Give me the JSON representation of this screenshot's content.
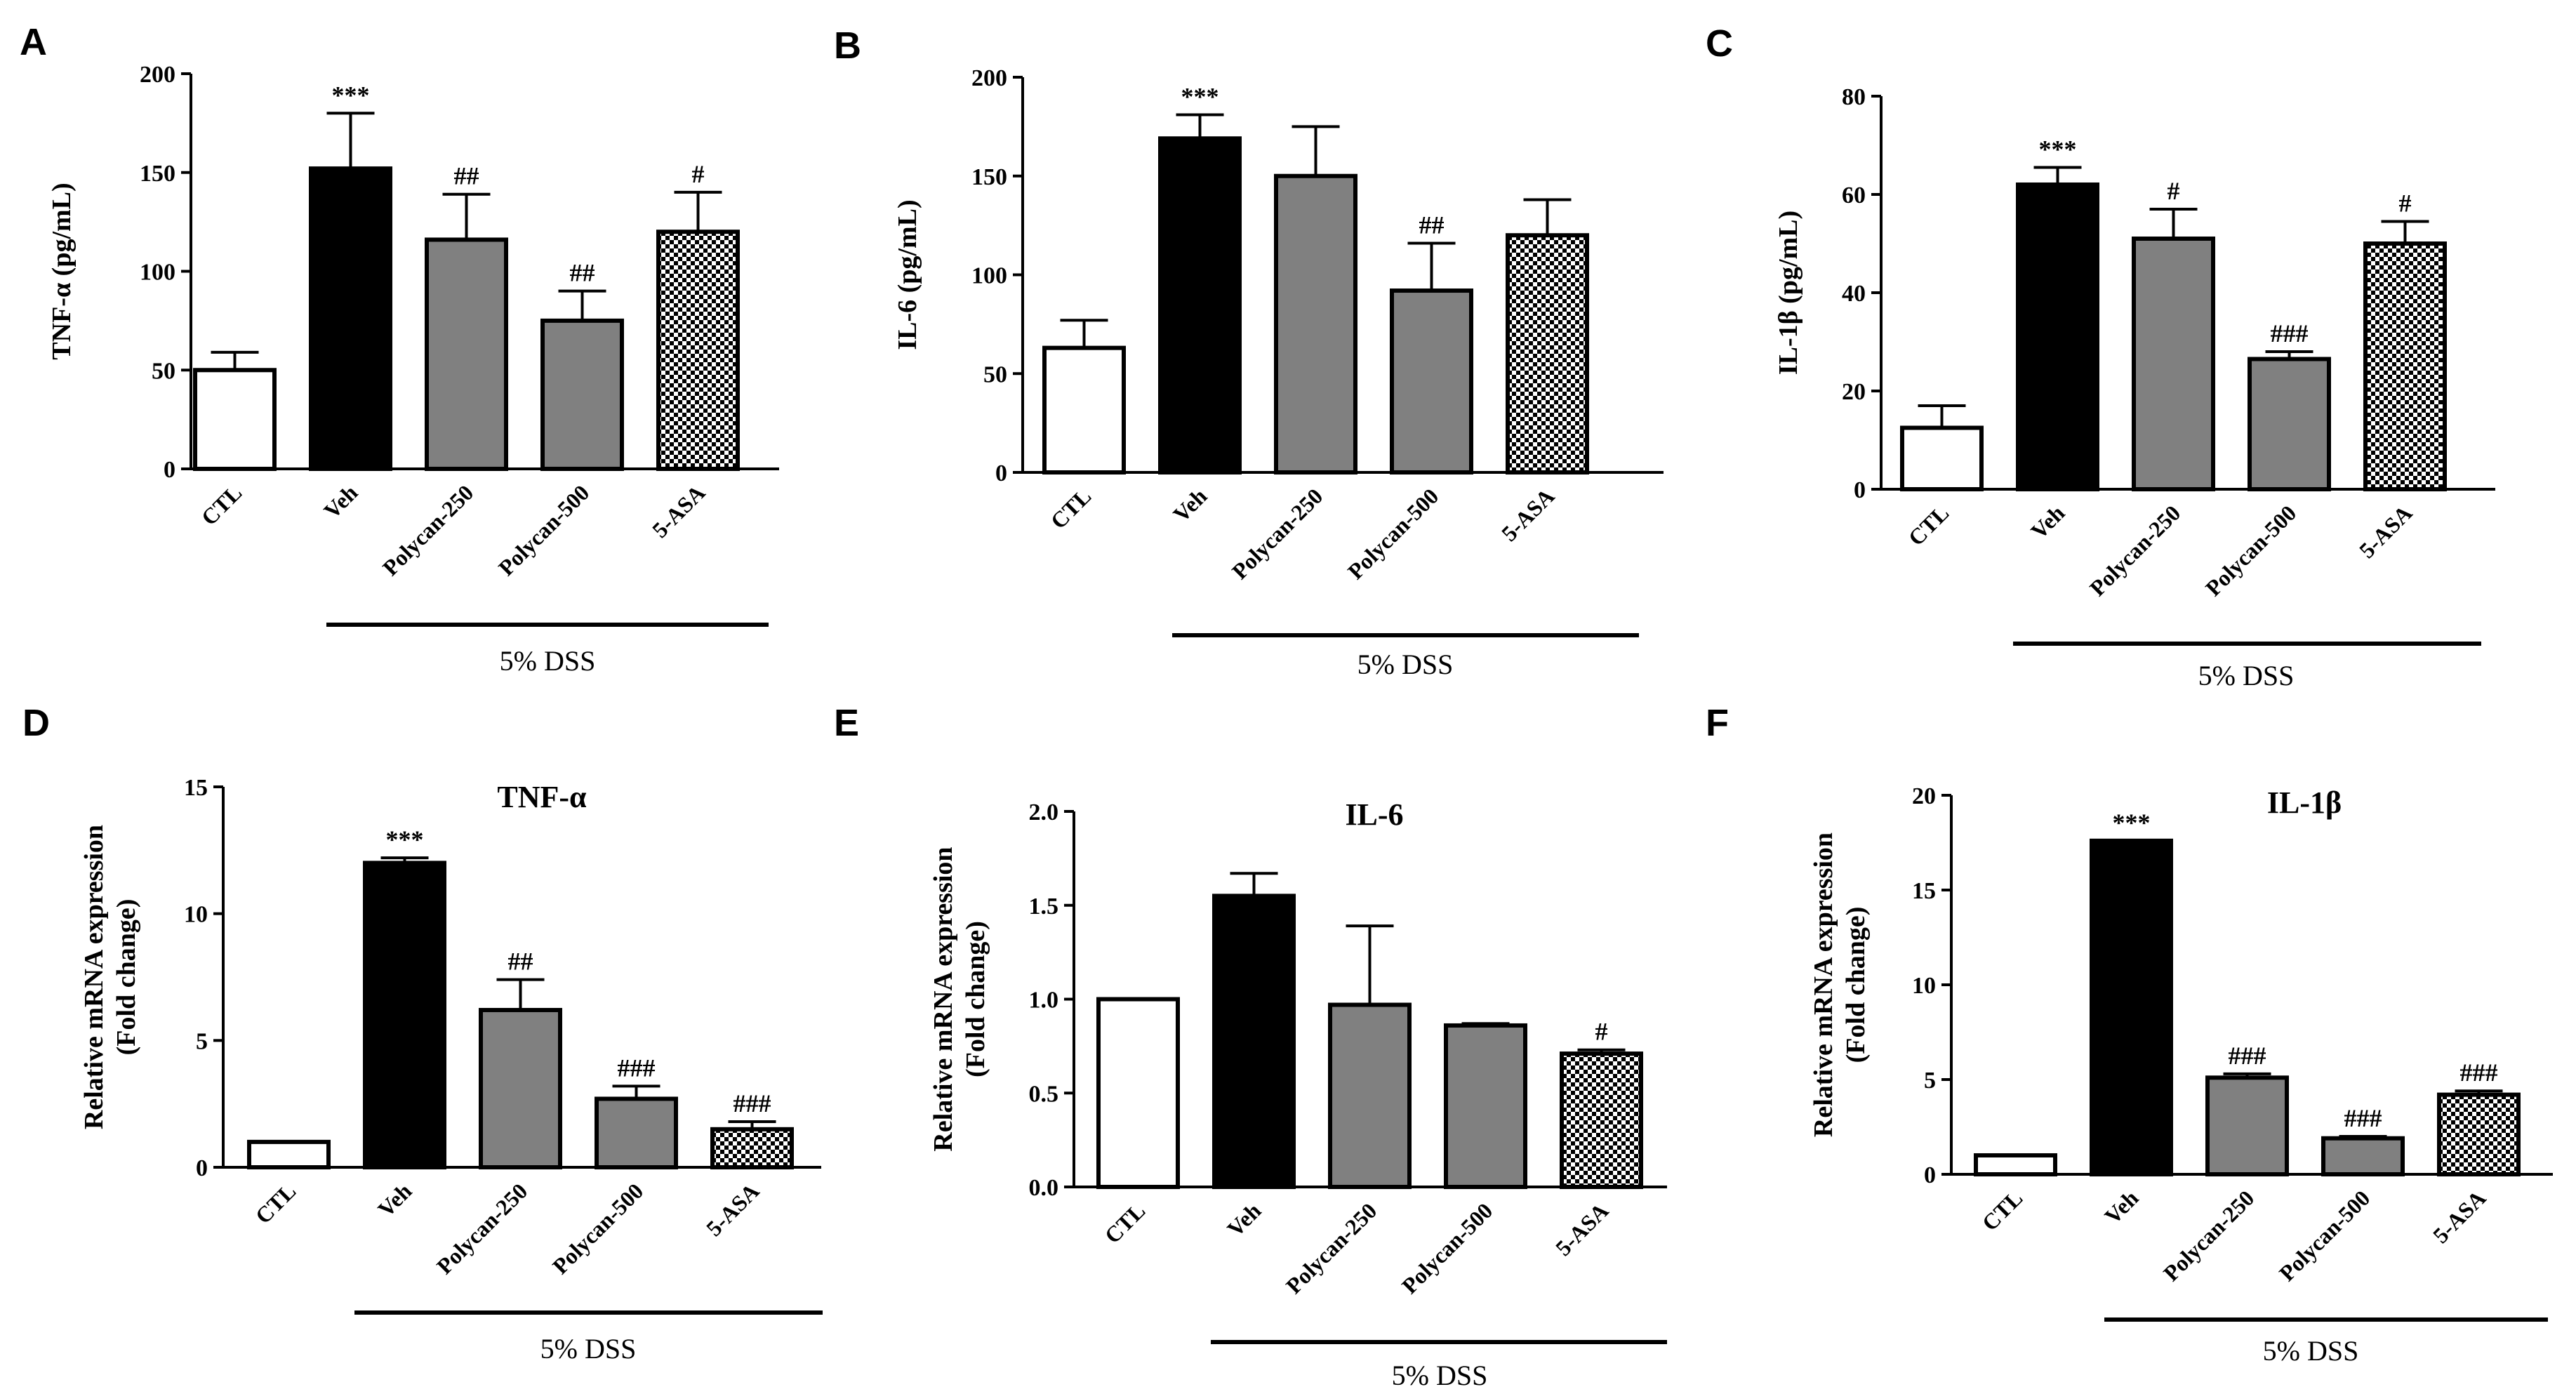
{
  "figure": {
    "group_label": "5% DSS",
    "colors": {
      "CTL": "#ffffff",
      "Veh": "#000000",
      "Polycan-250": "#808080",
      "Polycan-500": "#808080",
      "5-ASA": "checker",
      "outline": "#000000"
    }
  },
  "chart_data": [
    {
      "panel": "A",
      "type": "bar",
      "title": "",
      "ylabel": "TNF-α (pg/mL)",
      "xlabel": "",
      "categories": [
        "CTL",
        "Veh",
        "Polycan-250",
        "Polycan-500",
        "5-ASA"
      ],
      "values": [
        50,
        152,
        116,
        75,
        120
      ],
      "errors": [
        9,
        28,
        23,
        15,
        20
      ],
      "annotations": [
        "",
        "***",
        "##",
        "##",
        "#"
      ],
      "ylim": [
        0,
        200
      ],
      "yticks": [
        0,
        50,
        100,
        150,
        200
      ],
      "tick_decimals": 0
    },
    {
      "panel": "B",
      "type": "bar",
      "title": "",
      "ylabel": "IL-6 (pg/mL)",
      "xlabel": "",
      "categories": [
        "CTL",
        "Veh",
        "Polycan-250",
        "Polycan-500",
        "5-ASA"
      ],
      "values": [
        63,
        169,
        150,
        92,
        120
      ],
      "errors": [
        14,
        12,
        25,
        24,
        18
      ],
      "annotations": [
        "",
        "***",
        "",
        "##",
        ""
      ],
      "ylim": [
        0,
        200
      ],
      "yticks": [
        0,
        50,
        100,
        150,
        200
      ],
      "tick_decimals": 0
    },
    {
      "panel": "C",
      "type": "bar",
      "title": "",
      "ylabel": "IL-1β (pg/mL)",
      "xlabel": "",
      "categories": [
        "CTL",
        "Veh",
        "Polycan-250",
        "Polycan-500",
        "5-ASA"
      ],
      "values": [
        12.5,
        62,
        51,
        26.5,
        50
      ],
      "errors": [
        4.5,
        3.5,
        6,
        1.5,
        4.5
      ],
      "annotations": [
        "",
        "***",
        "#",
        "###",
        "#"
      ],
      "ylim": [
        0,
        80
      ],
      "yticks": [
        0,
        20,
        40,
        60,
        80
      ],
      "tick_decimals": 0
    },
    {
      "panel": "D",
      "type": "bar",
      "title": "TNF-α",
      "ylabel": "Relative mRNA expression\n(Fold change)",
      "xlabel": "",
      "categories": [
        "CTL",
        "Veh",
        "Polycan-250",
        "Polycan-500",
        "5-ASA"
      ],
      "values": [
        1.0,
        12.0,
        6.2,
        2.7,
        1.5
      ],
      "errors": [
        0,
        0.2,
        1.2,
        0.5,
        0.3
      ],
      "annotations": [
        "",
        "***",
        "##",
        "###",
        "###"
      ],
      "ylim": [
        0,
        15
      ],
      "yticks": [
        0,
        5,
        10,
        15
      ],
      "tick_decimals": 0
    },
    {
      "panel": "E",
      "type": "bar",
      "title": "IL-6",
      "ylabel": "Relative mRNA expression\n(Fold change)",
      "xlabel": "",
      "categories": [
        "CTL",
        "Veh",
        "Polycan-250",
        "Polycan-500",
        "5-ASA"
      ],
      "values": [
        1.0,
        1.55,
        0.97,
        0.86,
        0.71
      ],
      "errors": [
        0,
        0.12,
        0.42,
        0.01,
        0.02
      ],
      "annotations": [
        "",
        "",
        "",
        "",
        "#"
      ],
      "ylim": [
        0,
        2.0
      ],
      "yticks": [
        0,
        0.5,
        1.0,
        1.5,
        2.0
      ],
      "tick_decimals": 1
    },
    {
      "panel": "F",
      "type": "bar",
      "title": "IL-1β",
      "ylabel": "Relative mRNA expression\n(Fold change)",
      "xlabel": "",
      "categories": [
        "CTL",
        "Veh",
        "Polycan-250",
        "Polycan-500",
        "5-ASA"
      ],
      "values": [
        1.0,
        17.6,
        5.1,
        1.9,
        4.2
      ],
      "errors": [
        0,
        0,
        0.2,
        0.1,
        0.2
      ],
      "annotations": [
        "",
        "***",
        "###",
        "###",
        "###"
      ],
      "ylim": [
        0,
        20
      ],
      "yticks": [
        0,
        5,
        10,
        15,
        20
      ],
      "tick_decimals": 0
    }
  ]
}
